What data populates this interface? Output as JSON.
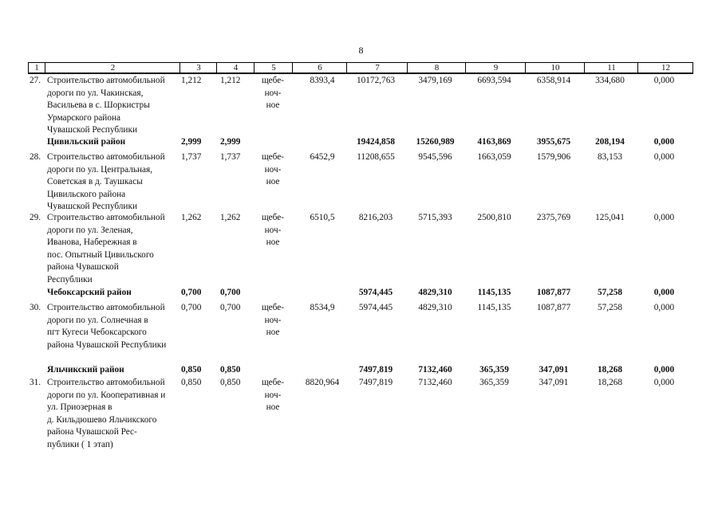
{
  "page_number": "8",
  "header": [
    "1",
    "2",
    "3",
    "4",
    "5",
    "6",
    "7",
    "8",
    "9",
    "10",
    "11",
    "12"
  ],
  "rows": [
    {
      "type": "item",
      "no": "27.",
      "name": "Строительство автомобильной\nдороги по ул. Чакинская,\nВасильева в с. Шоркистры\nУрмарского района\nЧувашской Республики",
      "c3": "1,212",
      "c4": "1,212",
      "c5": "щебе-\nноч-\nное",
      "c6": "8393,4",
      "c7": "10172,763",
      "c8": "3479,169",
      "c9": "6693,594",
      "c10": "6358,914",
      "c11": "334,680",
      "c12": "0,000"
    },
    {
      "type": "district",
      "no": "",
      "name": "Цивильский район",
      "c3": "2,999",
      "c4": "2,999",
      "c5": "",
      "c6": "",
      "c7": "19424,858",
      "c8": "15260,989",
      "c9": "4163,869",
      "c10": "3955,675",
      "c11": "208,194",
      "c12": "0,000"
    },
    {
      "type": "item",
      "no": "28.",
      "name": "Строительство автомобильной\nдороги по ул. Центральная,\nСоветская в д. Таушкасы\nЦивильского   района\nЧувашской Республики",
      "c3": "1,737",
      "c4": "1,737",
      "c5": "щебе-\nноч-\nное",
      "c6": "6452,9",
      "c7": "11208,655",
      "c8": "9545,596",
      "c9": "1663,059",
      "c10": "1579,906",
      "c11": "83,153",
      "c12": "0,000"
    },
    {
      "type": "item",
      "no": "29.",
      "name": "Строительство автомобильной\nдороги по ул. Зеленая,\nИванова, Набережная в\nпос. Опытный Цивильского\nрайона   Чувашской\nРеспублики",
      "c3": "1,262",
      "c4": "1,262",
      "c5": "щебе-\nноч-\nное",
      "c6": "6510,5",
      "c7": "8216,203",
      "c8": "5715,393",
      "c9": "2500,810",
      "c10": "2375,769",
      "c11": "125,041",
      "c12": "0,000"
    },
    {
      "type": "district",
      "no": "",
      "name": "Чебоксарский район",
      "c3": "0,700",
      "c4": "0,700",
      "c5": "",
      "c6": "",
      "c7": "5974,445",
      "c8": "4829,310",
      "c9": "1145,135",
      "c10": "1087,877",
      "c11": "57,258",
      "c12": "0,000"
    },
    {
      "type": "item",
      "no": "30.",
      "name": "Строительство автомобильной\nдороги по ул. Солнечная в\nпгт Кугеси Чебоксарского\nрайона Чувашской Республики",
      "c3": "0,700",
      "c4": "0,700",
      "c5": "щебе-\nноч-\nное",
      "c6": "8534,9",
      "c7": "5974,445",
      "c8": "4829,310",
      "c9": "1145,135",
      "c10": "1087,877",
      "c11": "57,258",
      "c12": "0,000"
    },
    {
      "type": "district",
      "no": "",
      "name": "Яльчикский район",
      "c3": "0,850",
      "c4": "0,850",
      "c5": "",
      "c6": "",
      "c7": "7497,819",
      "c8": "7132,460",
      "c9": "365,359",
      "c10": "347,091",
      "c11": "18,268",
      "c12": "0,000"
    },
    {
      "type": "item",
      "no": "31.",
      "name": "Строительство автомобильной\nдороги по ул. Кооперативная и\nул. Приозерная в\nд. Кильдюшево Яльчикского\nрайона Чувашской Рес-\nпублики ( 1 этап)",
      "c3": "0,850",
      "c4": "0,850",
      "c5": "щебе-\nноч-\nное",
      "c6": "8820,964",
      "c7": "7497,819",
      "c8": "7132,460",
      "c9": "365,359",
      "c10": "347,091",
      "c11": "18,268",
      "c12": "0,000"
    }
  ]
}
